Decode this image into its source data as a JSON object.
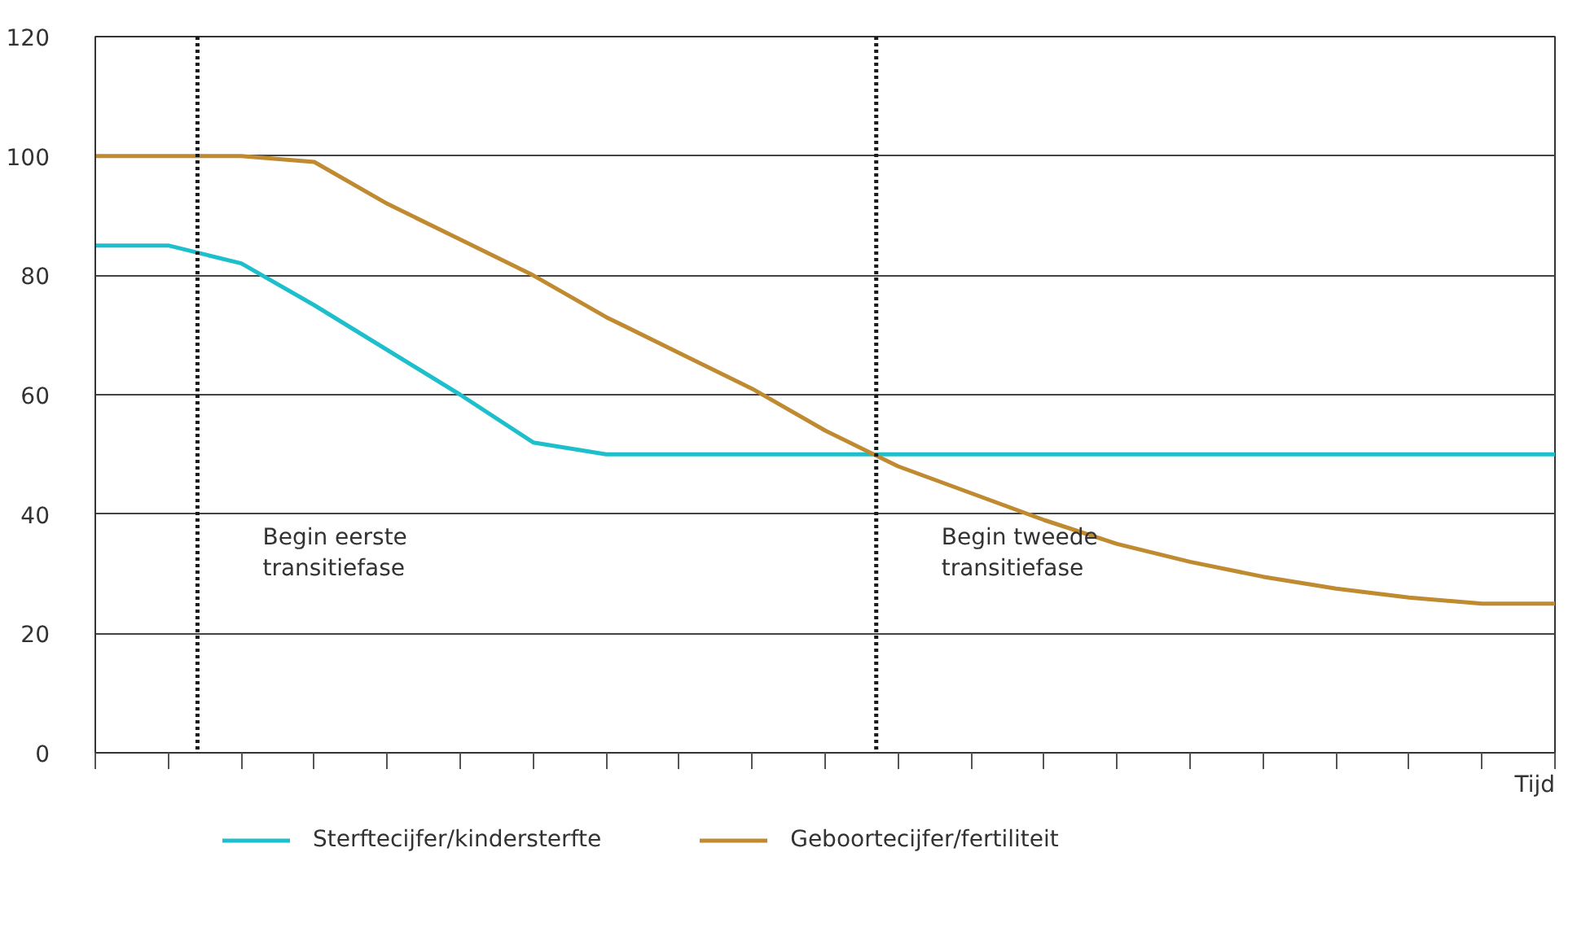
{
  "chart_data": {
    "type": "line",
    "xlabel": "Tijd",
    "categories": [
      null,
      null,
      null,
      null,
      null,
      null,
      null,
      null,
      null,
      null,
      null,
      null,
      null,
      null,
      null,
      null,
      null,
      null,
      null,
      null,
      null
    ],
    "series": [
      {
        "name": "Sterftecijfer/kindersterfte",
        "color": "#1ebfcc",
        "values": [
          85,
          85,
          82,
          75,
          67.5,
          60,
          52,
          50,
          50,
          50,
          50,
          50,
          50,
          50,
          50,
          50,
          50,
          50,
          50,
          50,
          50
        ]
      },
      {
        "name": "Geboortecijfer/fertiliteit",
        "color": "#c08a30",
        "values": [
          100,
          100,
          100,
          99,
          92,
          86,
          80,
          73,
          67,
          61,
          54,
          48,
          43.5,
          39,
          35,
          32,
          29.5,
          27.5,
          26,
          25,
          25
        ]
      }
    ],
    "ylim": [
      0,
      120
    ],
    "yticks": [
      0,
      20,
      40,
      60,
      80,
      100,
      120
    ],
    "annotations": [
      "Begin eerste\ntransitiefase",
      "Begin tweede\ntransitiefase"
    ],
    "grid": "y",
    "legend": "bottom",
    "marker": "none",
    "line_style": "solid"
  }
}
